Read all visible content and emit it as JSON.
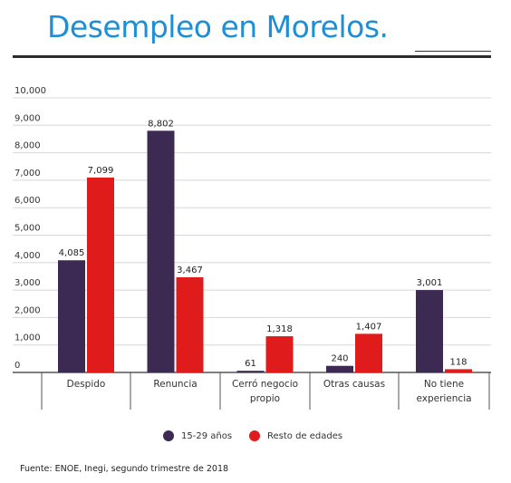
{
  "title": "Desempleo en Morelos.",
  "source": "Fuente: ENOE, Inegi, segundo trimestre de 2018",
  "colors": {
    "youth": "#3d2a52",
    "rest": "#e01b1b",
    "title": "#1e8fd6"
  },
  "chart_data": {
    "type": "bar",
    "categories": [
      [
        "Despido"
      ],
      [
        "Renuncia"
      ],
      [
        "Cerró negocio",
        "propio"
      ],
      [
        "Otras causas"
      ],
      [
        "No tiene",
        "experiencia"
      ]
    ],
    "series": [
      {
        "name": "15-29 años",
        "values": [
          4085,
          8802,
          61,
          240,
          3001
        ],
        "labels": [
          "4,085",
          "8,802",
          "61",
          "240",
          "3,001"
        ]
      },
      {
        "name": "Resto de edades",
        "values": [
          7099,
          3467,
          1318,
          1407,
          118
        ],
        "labels": [
          "7,099",
          "3,467",
          "1,318",
          "1,407",
          "118"
        ]
      }
    ],
    "ylim": [
      0,
      10000
    ],
    "yticks": [
      "0",
      "1,000",
      "2,000",
      "3,000",
      "4,000",
      "5,000",
      "6,000",
      "7,000",
      "8,000",
      "9,000",
      "10,000"
    ],
    "grid": true,
    "legend_position": "bottom"
  }
}
